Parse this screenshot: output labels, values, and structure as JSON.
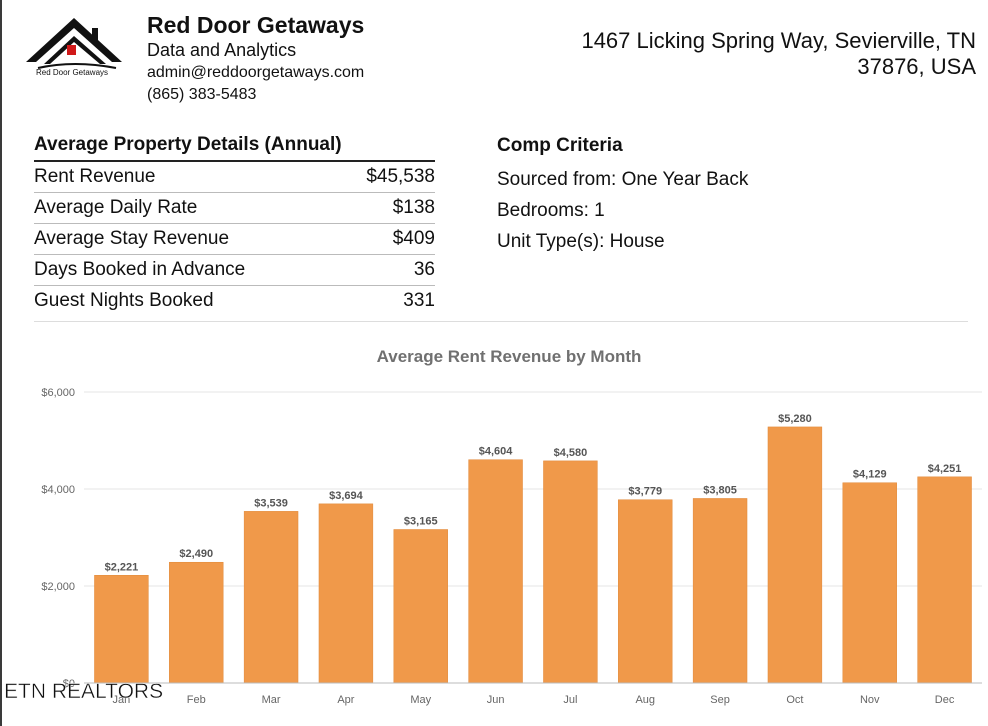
{
  "company": {
    "logo_text": "Red Door Getaways",
    "name": "Red Door Getaways",
    "subtitle": "Data and Analytics",
    "email": "admin@reddoorgetaways.com",
    "phone": "(865) 383-5483"
  },
  "address": {
    "line1": "1467 Licking Spring Way, Sevierville, TN",
    "line2": "37876, USA"
  },
  "details": {
    "title": "Average Property Details (Annual)",
    "rows": [
      {
        "label": "Rent Revenue",
        "value": "$45,538"
      },
      {
        "label": "Average Daily Rate",
        "value": "$138"
      },
      {
        "label": "Average Stay Revenue",
        "value": "$409"
      },
      {
        "label": "Days Booked in Advance",
        "value": "36"
      },
      {
        "label": "Guest Nights Booked",
        "value": "331"
      }
    ]
  },
  "criteria": {
    "title": "Comp Criteria",
    "items": [
      "Sourced from: One Year Back",
      "Bedrooms: 1",
      "Unit Type(s):  House"
    ]
  },
  "watermark": "ETN REALTORS",
  "colors": {
    "bar": "#F0994A",
    "grid": "#e6e6e6",
    "axis_text": "#666666"
  },
  "chart_data": {
    "type": "bar",
    "title": "Average Rent Revenue by Month",
    "categories": [
      "Jan",
      "Feb",
      "Mar",
      "Apr",
      "May",
      "Jun",
      "Jul",
      "Aug",
      "Sep",
      "Oct",
      "Nov",
      "Dec"
    ],
    "values": [
      2221,
      2490,
      3539,
      3694,
      3165,
      4604,
      4580,
      3779,
      3805,
      5280,
      4129,
      4251
    ],
    "data_labels": [
      "$2,221",
      "$2,490",
      "$3,539",
      "$3,694",
      "$3,165",
      "$4,604",
      "$4,580",
      "$3,779",
      "$3,805",
      "$5,280",
      "$4,129",
      "$4,251"
    ],
    "yticks": [
      0,
      2000,
      4000,
      6000
    ],
    "ytick_labels": [
      "$0",
      "$2,000",
      "$4,000",
      "$6,000"
    ],
    "ylim": [
      0,
      6000
    ],
    "xlabel": "",
    "ylabel": "",
    "grid": true,
    "legend": "none"
  }
}
